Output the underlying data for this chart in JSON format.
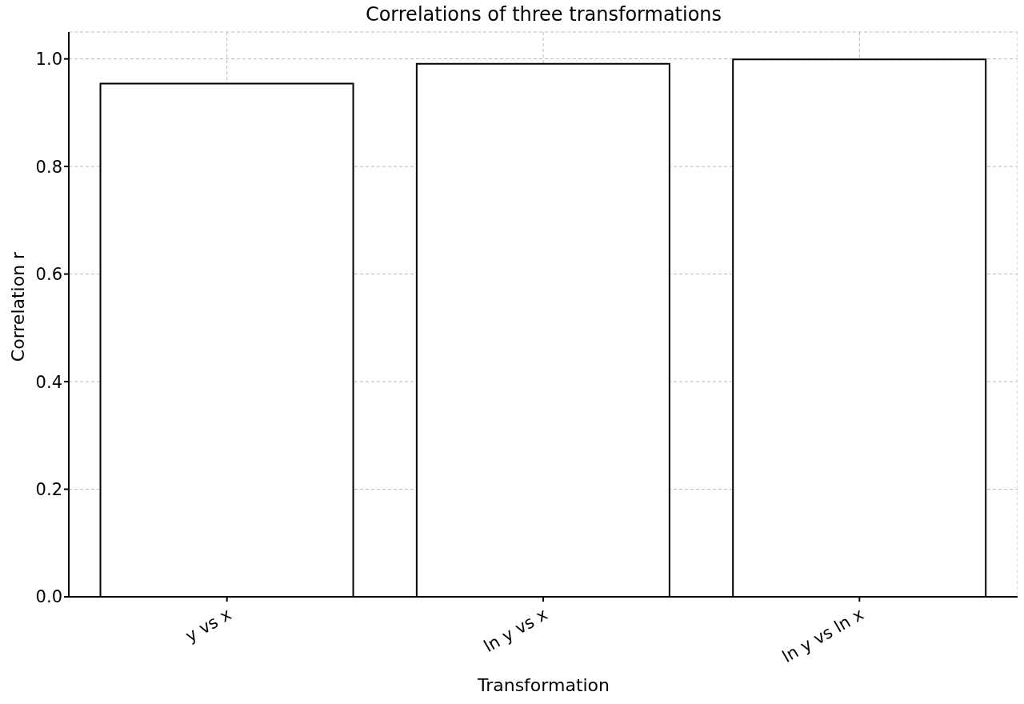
{
  "chart_data": {
    "type": "bar",
    "title": "Correlations of three transformations",
    "xlabel": "Transformation",
    "ylabel": "Correlation r",
    "categories": [
      "y vs x",
      "ln y vs x",
      "ln y vs ln x"
    ],
    "series": [
      {
        "color": "#ffffff",
        "values": [
          0.954,
          0.991,
          0.999
        ]
      }
    ],
    "ylim": [
      0,
      1.05
    ],
    "yticks": [
      {
        "value": 0,
        "label": "0.0"
      },
      {
        "value": 0.2,
        "label": "0.2"
      },
      {
        "value": 0.4,
        "label": "0.4"
      },
      {
        "value": 0.6,
        "label": "0.6"
      },
      {
        "value": 0.8,
        "label": "0.8"
      },
      {
        "value": 1,
        "label": "1.0"
      }
    ],
    "grid": true
  }
}
